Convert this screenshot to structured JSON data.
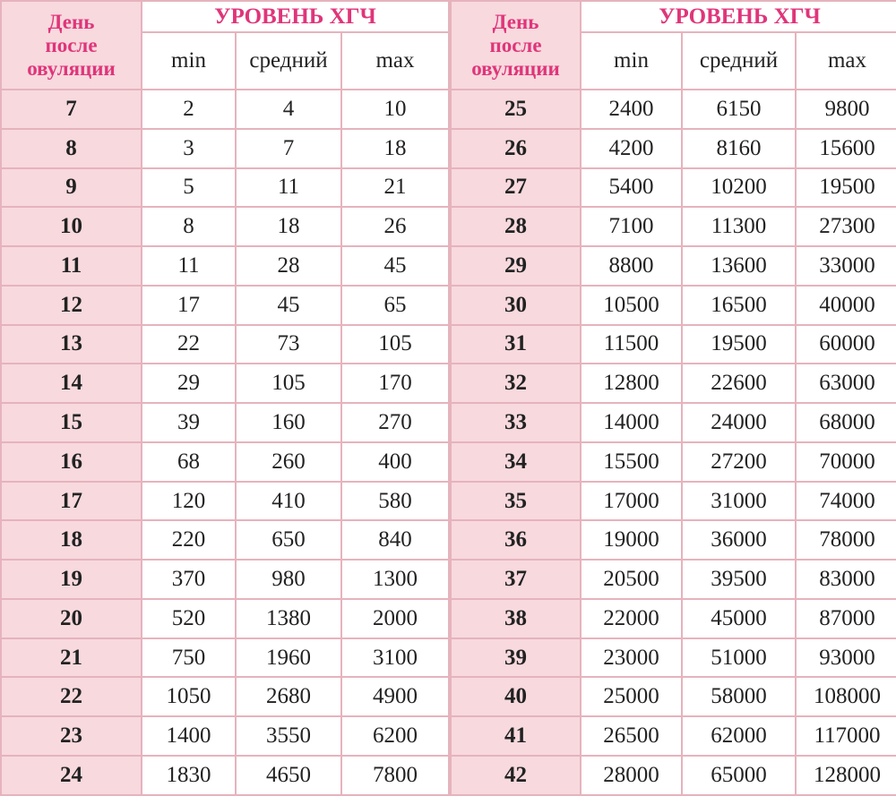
{
  "header": {
    "day_label": [
      "День",
      "после",
      "овуляции"
    ],
    "title": "УРОВЕНЬ ХГЧ",
    "columns": [
      "min",
      "средний",
      "max"
    ]
  },
  "colors": {
    "accent": "#e0357a",
    "day_column_bg": "#f7d9de",
    "border": "#e6b3bd"
  },
  "left_rows": [
    [
      "7",
      "2",
      "4",
      "10"
    ],
    [
      "8",
      "3",
      "7",
      "18"
    ],
    [
      "9",
      "5",
      "11",
      "21"
    ],
    [
      "10",
      "8",
      "18",
      "26"
    ],
    [
      "11",
      "11",
      "28",
      "45"
    ],
    [
      "12",
      "17",
      "45",
      "65"
    ],
    [
      "13",
      "22",
      "73",
      "105"
    ],
    [
      "14",
      "29",
      "105",
      "170"
    ],
    [
      "15",
      "39",
      "160",
      "270"
    ],
    [
      "16",
      "68",
      "260",
      "400"
    ],
    [
      "17",
      "120",
      "410",
      "580"
    ],
    [
      "18",
      "220",
      "650",
      "840"
    ],
    [
      "19",
      "370",
      "980",
      "1300"
    ],
    [
      "20",
      "520",
      "1380",
      "2000"
    ],
    [
      "21",
      "750",
      "1960",
      "3100"
    ],
    [
      "22",
      "1050",
      "2680",
      "4900"
    ],
    [
      "23",
      "1400",
      "3550",
      "6200"
    ],
    [
      "24",
      "1830",
      "4650",
      "7800"
    ]
  ],
  "right_rows": [
    [
      "25",
      "2400",
      "6150",
      "9800"
    ],
    [
      "26",
      "4200",
      "8160",
      "15600"
    ],
    [
      "27",
      "5400",
      "10200",
      "19500"
    ],
    [
      "28",
      "7100",
      "11300",
      "27300"
    ],
    [
      "29",
      "8800",
      "13600",
      "33000"
    ],
    [
      "30",
      "10500",
      "16500",
      "40000"
    ],
    [
      "31",
      "11500",
      "19500",
      "60000"
    ],
    [
      "32",
      "12800",
      "22600",
      "63000"
    ],
    [
      "33",
      "14000",
      "24000",
      "68000"
    ],
    [
      "34",
      "15500",
      "27200",
      "70000"
    ],
    [
      "35",
      "17000",
      "31000",
      "74000"
    ],
    [
      "36",
      "19000",
      "36000",
      "78000"
    ],
    [
      "37",
      "20500",
      "39500",
      "83000"
    ],
    [
      "38",
      "22000",
      "45000",
      "87000"
    ],
    [
      "39",
      "23000",
      "51000",
      "93000"
    ],
    [
      "40",
      "25000",
      "58000",
      "108000"
    ],
    [
      "41",
      "26500",
      "62000",
      "117000"
    ],
    [
      "42",
      "28000",
      "65000",
      "128000"
    ]
  ]
}
